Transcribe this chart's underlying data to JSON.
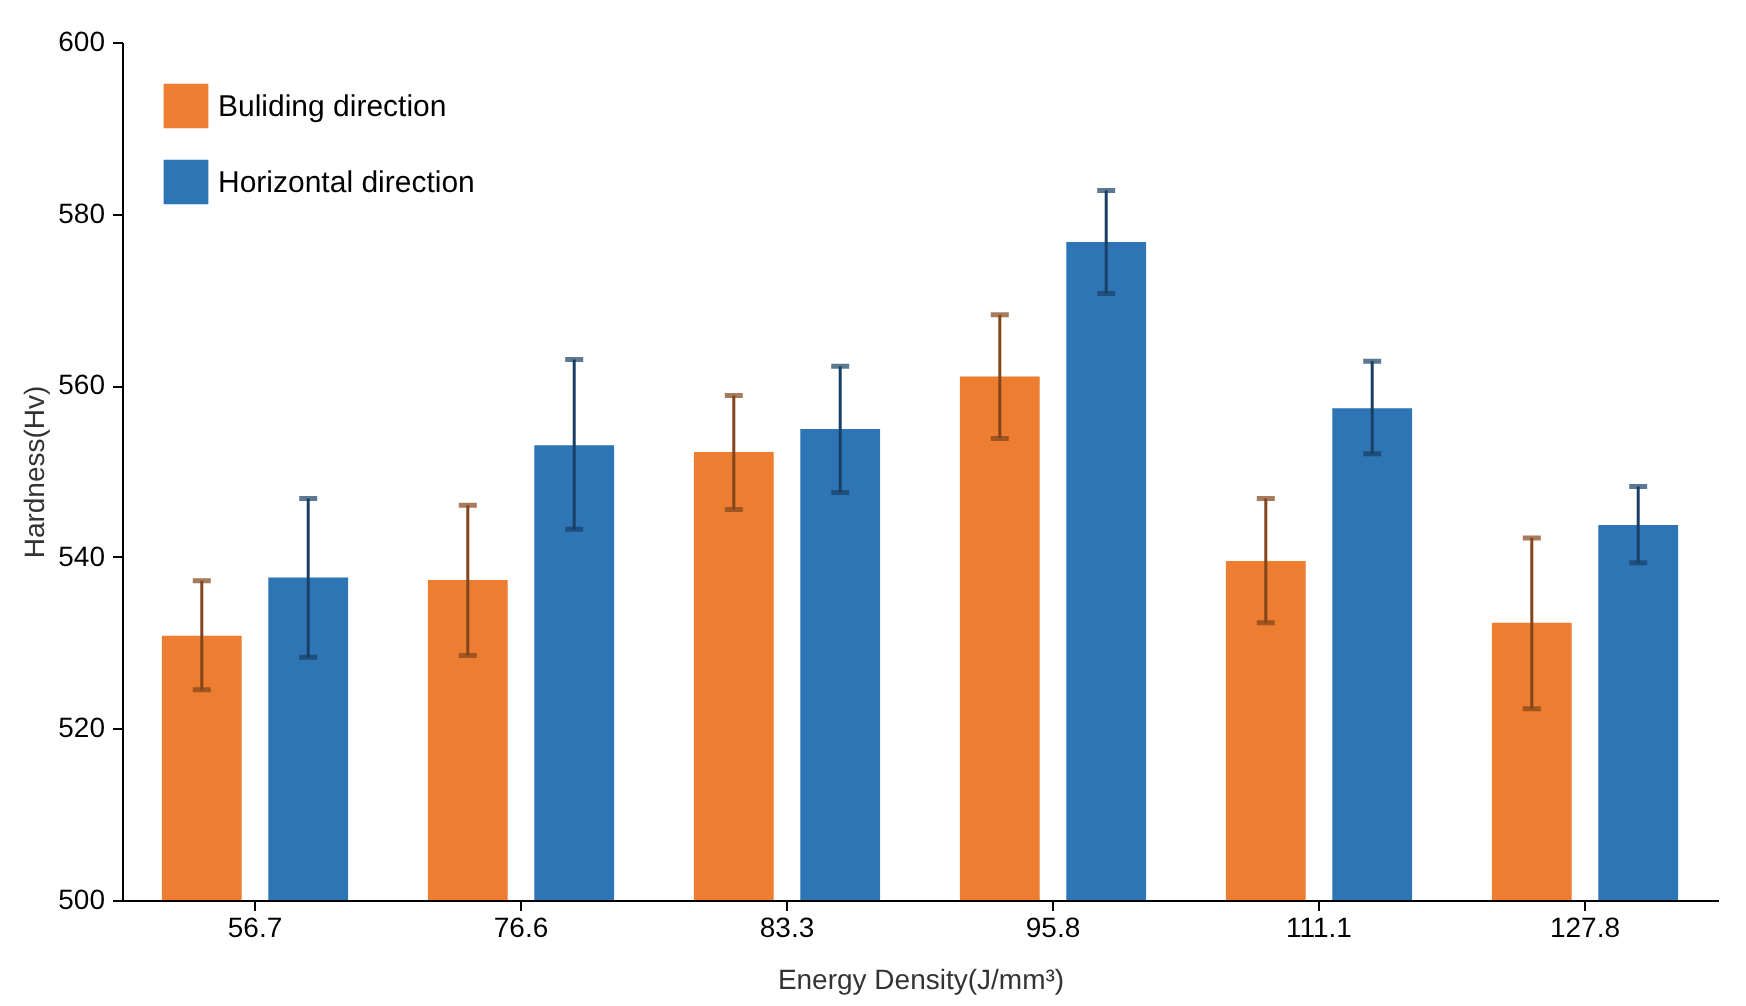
{
  "chart_data": {
    "type": "bar",
    "xlabel": "Energy Density(J/mm³)",
    "ylabel": "Hardness(Hv)",
    "categories": [
      "56.7",
      "76.6",
      "83.3",
      "95.8",
      "111.1",
      "127.8"
    ],
    "series": [
      {
        "name": "Buliding direction",
        "color": "#ed7d31",
        "values": [
          530.8,
          537.3,
          552.2,
          561,
          539.5,
          532.3
        ],
        "errors": [
          [
            524.5,
            537.2
          ],
          [
            528.5,
            546
          ],
          [
            545.5,
            558.8
          ],
          [
            553.8,
            568.2
          ],
          [
            532.3,
            546.8
          ],
          [
            522.3,
            542.2
          ]
        ]
      },
      {
        "name": "Horizontal direction",
        "color": "#2e75b6",
        "values": [
          537.6,
          553,
          554.9,
          576.7,
          557.3,
          543.7
        ],
        "errors": [
          [
            528.3,
            546.8
          ],
          [
            543.2,
            563
          ],
          [
            547.5,
            562.2
          ],
          [
            570.7,
            582.7
          ],
          [
            552,
            562.8
          ],
          [
            539.3,
            548.2
          ]
        ]
      }
    ],
    "ylim": [
      500,
      600
    ],
    "yticks": [
      500,
      520,
      540,
      560,
      580,
      600
    ],
    "grid": false,
    "legend": "top left"
  }
}
